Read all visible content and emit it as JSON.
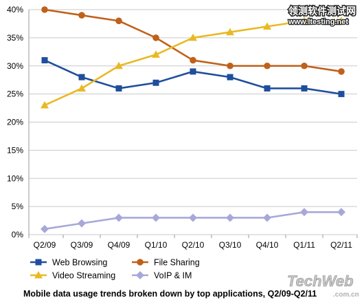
{
  "chart_data": {
    "type": "line",
    "title": "Mobile data usage trends broken down by top applications, Q2/09-Q2/11",
    "xlabel": "",
    "ylabel": "",
    "categories": [
      "Q2/09",
      "Q3/09",
      "Q4/09",
      "Q1/10",
      "Q2/10",
      "Q3/10",
      "Q4/10",
      "Q1/11",
      "Q2/11"
    ],
    "ylim": [
      0,
      40
    ],
    "yticks": [
      0,
      5,
      10,
      15,
      20,
      25,
      30,
      35,
      40
    ],
    "ytick_labels": [
      "0%",
      "5%",
      "10%",
      "15%",
      "20%",
      "25%",
      "30%",
      "35%",
      "40%"
    ],
    "grid": "horizontal",
    "legend_position": "bottom",
    "series": [
      {
        "name": "Web Browsing",
        "color": "#1f4e9c",
        "marker": "square",
        "values": [
          31,
          28,
          26,
          27,
          29,
          28,
          26,
          26,
          25
        ]
      },
      {
        "name": "File Sharing",
        "color": "#c0601a",
        "marker": "circle",
        "values": [
          40,
          39,
          38,
          35,
          31,
          30,
          30,
          30,
          29
        ]
      },
      {
        "name": "Video Streaming",
        "color": "#e8b923",
        "marker": "triangle",
        "values": [
          23,
          26,
          30,
          32,
          35,
          36,
          37,
          38,
          38
        ]
      },
      {
        "name": "VoIP & IM",
        "color": "#a7a8d9",
        "marker": "diamond",
        "values": [
          1,
          2,
          3,
          3,
          3,
          3,
          3,
          4,
          4
        ]
      }
    ]
  },
  "watermarks": {
    "top_right_brand": "领测软件测试网",
    "top_right_url": "www.ltesting.net",
    "bottom_right_brand": "TechWeb",
    "bottom_right_suffix": ".com.cn"
  }
}
